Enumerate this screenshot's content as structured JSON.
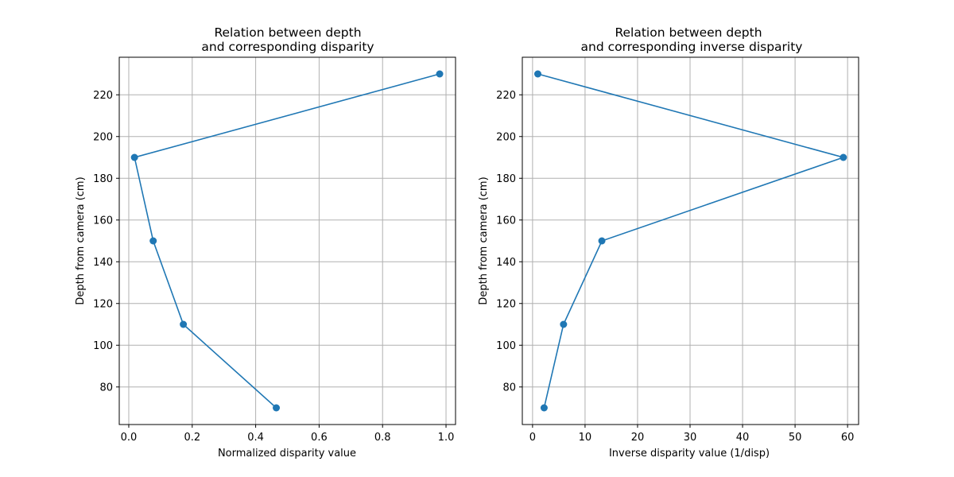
{
  "chart_data": [
    {
      "type": "line",
      "title_line1": "Relation between depth",
      "title_line2": "and corresponding disparity",
      "xlabel": "Normalized disparity value",
      "ylabel": "Depth from camera (cm)",
      "xlim": [
        -0.03,
        1.03
      ],
      "ylim": [
        62,
        238
      ],
      "xticks": [
        0.0,
        0.2,
        0.4,
        0.6,
        0.8,
        1.0
      ],
      "xtick_labels": [
        "0.0",
        "0.2",
        "0.4",
        "0.6",
        "0.8",
        "1.0"
      ],
      "yticks": [
        80,
        100,
        120,
        140,
        160,
        180,
        200,
        220
      ],
      "ytick_labels": [
        "80",
        "100",
        "120",
        "140",
        "160",
        "180",
        "200",
        "220"
      ],
      "grid": true,
      "color": "#1f77b4",
      "series": [
        {
          "x": [
            0.98,
            0.018,
            0.077,
            0.172,
            0.465
          ],
          "y": [
            230,
            190,
            150,
            110,
            70
          ]
        }
      ]
    },
    {
      "type": "line",
      "title_line1": "Relation between depth",
      "title_line2": "and corresponding inverse disparity",
      "xlabel": "Inverse disparity value (1/disp)",
      "ylabel": "Depth from camera (cm)",
      "xlim": [
        -1.95,
        62.1
      ],
      "ylim": [
        62,
        238
      ],
      "xticks": [
        0,
        10,
        20,
        30,
        40,
        50,
        60
      ],
      "xtick_labels": [
        "0",
        "10",
        "20",
        "30",
        "40",
        "50",
        "60"
      ],
      "yticks": [
        80,
        100,
        120,
        140,
        160,
        180,
        200,
        220
      ],
      "ytick_labels": [
        "80",
        "100",
        "120",
        "140",
        "160",
        "180",
        "200",
        "220"
      ],
      "grid": true,
      "color": "#1f77b4",
      "series": [
        {
          "x": [
            1.0,
            59.2,
            13.2,
            5.9,
            2.2
          ],
          "y": [
            230,
            190,
            150,
            110,
            70
          ]
        }
      ]
    }
  ]
}
